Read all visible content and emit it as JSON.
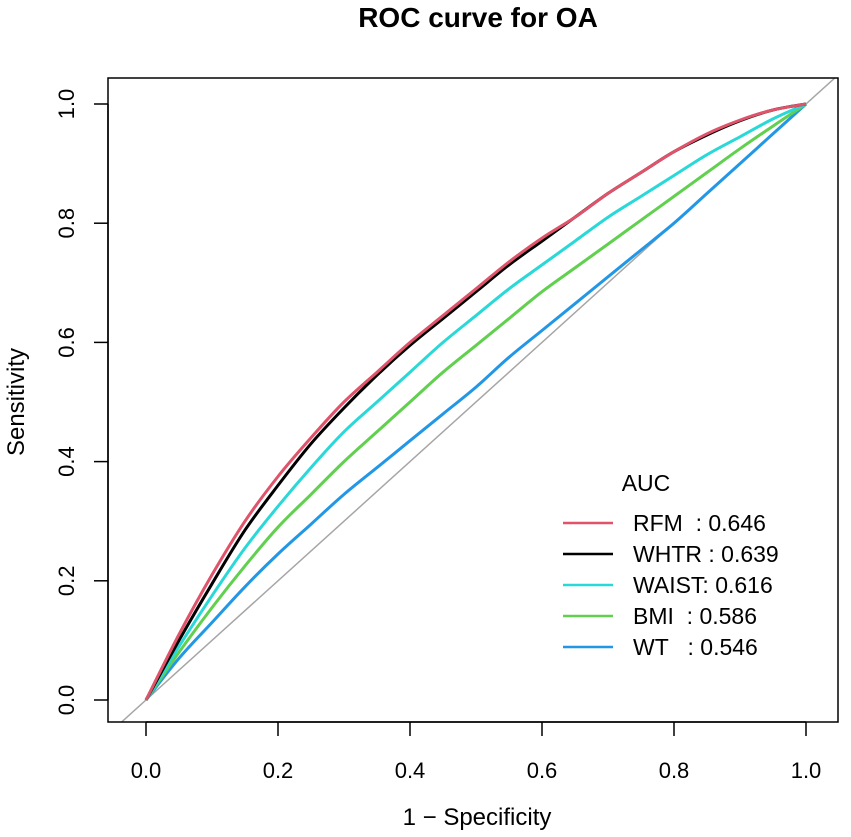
{
  "chart_data": {
    "type": "line",
    "title": "ROC curve for OA",
    "xlabel": "1 − Specificity",
    "ylabel": "Sensitivity",
    "xlim": [
      0.0,
      1.0
    ],
    "ylim": [
      0.0,
      1.0
    ],
    "x_ticks": [
      "0.0",
      "0.2",
      "0.4",
      "0.6",
      "0.8",
      "1.0"
    ],
    "y_ticks": [
      "0.0",
      "0.2",
      "0.4",
      "0.6",
      "0.8",
      "1.0"
    ],
    "legend": {
      "title": "AUC",
      "position": "bottom-right"
    },
    "reference_line": {
      "from": [
        0,
        0
      ],
      "to": [
        1,
        1
      ],
      "color": "#a6a6a6"
    },
    "series": [
      {
        "name": "RFM",
        "label": "RFM  : 0.646",
        "auc": 0.646,
        "color": "#df536b",
        "points": [
          [
            0,
            0
          ],
          [
            0.05,
            0.11
          ],
          [
            0.1,
            0.21
          ],
          [
            0.15,
            0.3
          ],
          [
            0.2,
            0.375
          ],
          [
            0.25,
            0.44
          ],
          [
            0.3,
            0.5
          ],
          [
            0.35,
            0.55
          ],
          [
            0.4,
            0.6
          ],
          [
            0.45,
            0.645
          ],
          [
            0.5,
            0.69
          ],
          [
            0.55,
            0.735
          ],
          [
            0.6,
            0.775
          ],
          [
            0.65,
            0.81
          ],
          [
            0.7,
            0.85
          ],
          [
            0.75,
            0.885
          ],
          [
            0.8,
            0.92
          ],
          [
            0.85,
            0.95
          ],
          [
            0.9,
            0.973
          ],
          [
            0.95,
            0.99
          ],
          [
            1,
            1
          ]
        ]
      },
      {
        "name": "WHTR",
        "label": "WHTR : 0.639",
        "auc": 0.639,
        "color": "#000000",
        "points": [
          [
            0,
            0
          ],
          [
            0.05,
            0.1
          ],
          [
            0.1,
            0.195
          ],
          [
            0.15,
            0.285
          ],
          [
            0.2,
            0.36
          ],
          [
            0.25,
            0.43
          ],
          [
            0.3,
            0.49
          ],
          [
            0.35,
            0.545
          ],
          [
            0.4,
            0.595
          ],
          [
            0.45,
            0.64
          ],
          [
            0.5,
            0.685
          ],
          [
            0.55,
            0.73
          ],
          [
            0.6,
            0.77
          ],
          [
            0.65,
            0.81
          ],
          [
            0.7,
            0.85
          ],
          [
            0.75,
            0.885
          ],
          [
            0.8,
            0.92
          ],
          [
            0.85,
            0.948
          ],
          [
            0.9,
            0.972
          ],
          [
            0.95,
            0.99
          ],
          [
            1,
            1
          ]
        ]
      },
      {
        "name": "WAIST",
        "label": "WAIST: 0.616",
        "auc": 0.616,
        "color": "#2ad8d8",
        "points": [
          [
            0,
            0
          ],
          [
            0.05,
            0.09
          ],
          [
            0.1,
            0.175
          ],
          [
            0.15,
            0.255
          ],
          [
            0.2,
            0.325
          ],
          [
            0.25,
            0.39
          ],
          [
            0.3,
            0.45
          ],
          [
            0.35,
            0.5
          ],
          [
            0.4,
            0.55
          ],
          [
            0.45,
            0.6
          ],
          [
            0.5,
            0.645
          ],
          [
            0.55,
            0.69
          ],
          [
            0.6,
            0.73
          ],
          [
            0.65,
            0.77
          ],
          [
            0.7,
            0.81
          ],
          [
            0.75,
            0.845
          ],
          [
            0.8,
            0.88
          ],
          [
            0.85,
            0.915
          ],
          [
            0.9,
            0.945
          ],
          [
            0.95,
            0.975
          ],
          [
            1,
            1
          ]
        ]
      },
      {
        "name": "BMI",
        "label": "BMI  : 0.586",
        "auc": 0.586,
        "color": "#61d04f",
        "points": [
          [
            0,
            0
          ],
          [
            0.05,
            0.08
          ],
          [
            0.1,
            0.155
          ],
          [
            0.15,
            0.225
          ],
          [
            0.2,
            0.29
          ],
          [
            0.25,
            0.345
          ],
          [
            0.3,
            0.4
          ],
          [
            0.35,
            0.45
          ],
          [
            0.4,
            0.5
          ],
          [
            0.45,
            0.55
          ],
          [
            0.5,
            0.595
          ],
          [
            0.55,
            0.64
          ],
          [
            0.6,
            0.685
          ],
          [
            0.65,
            0.725
          ],
          [
            0.7,
            0.765
          ],
          [
            0.75,
            0.805
          ],
          [
            0.8,
            0.845
          ],
          [
            0.85,
            0.885
          ],
          [
            0.9,
            0.925
          ],
          [
            0.95,
            0.963
          ],
          [
            1,
            1
          ]
        ]
      },
      {
        "name": "WT",
        "label": "WT   : 0.546",
        "auc": 0.546,
        "color": "#2297e6",
        "points": [
          [
            0,
            0
          ],
          [
            0.05,
            0.07
          ],
          [
            0.1,
            0.13
          ],
          [
            0.15,
            0.19
          ],
          [
            0.2,
            0.245
          ],
          [
            0.25,
            0.295
          ],
          [
            0.3,
            0.345
          ],
          [
            0.35,
            0.39
          ],
          [
            0.4,
            0.435
          ],
          [
            0.45,
            0.48
          ],
          [
            0.5,
            0.525
          ],
          [
            0.55,
            0.575
          ],
          [
            0.6,
            0.62
          ],
          [
            0.65,
            0.665
          ],
          [
            0.7,
            0.71
          ],
          [
            0.75,
            0.755
          ],
          [
            0.8,
            0.8
          ],
          [
            0.85,
            0.85
          ],
          [
            0.9,
            0.9
          ],
          [
            0.95,
            0.95
          ],
          [
            1,
            1
          ]
        ]
      }
    ]
  }
}
